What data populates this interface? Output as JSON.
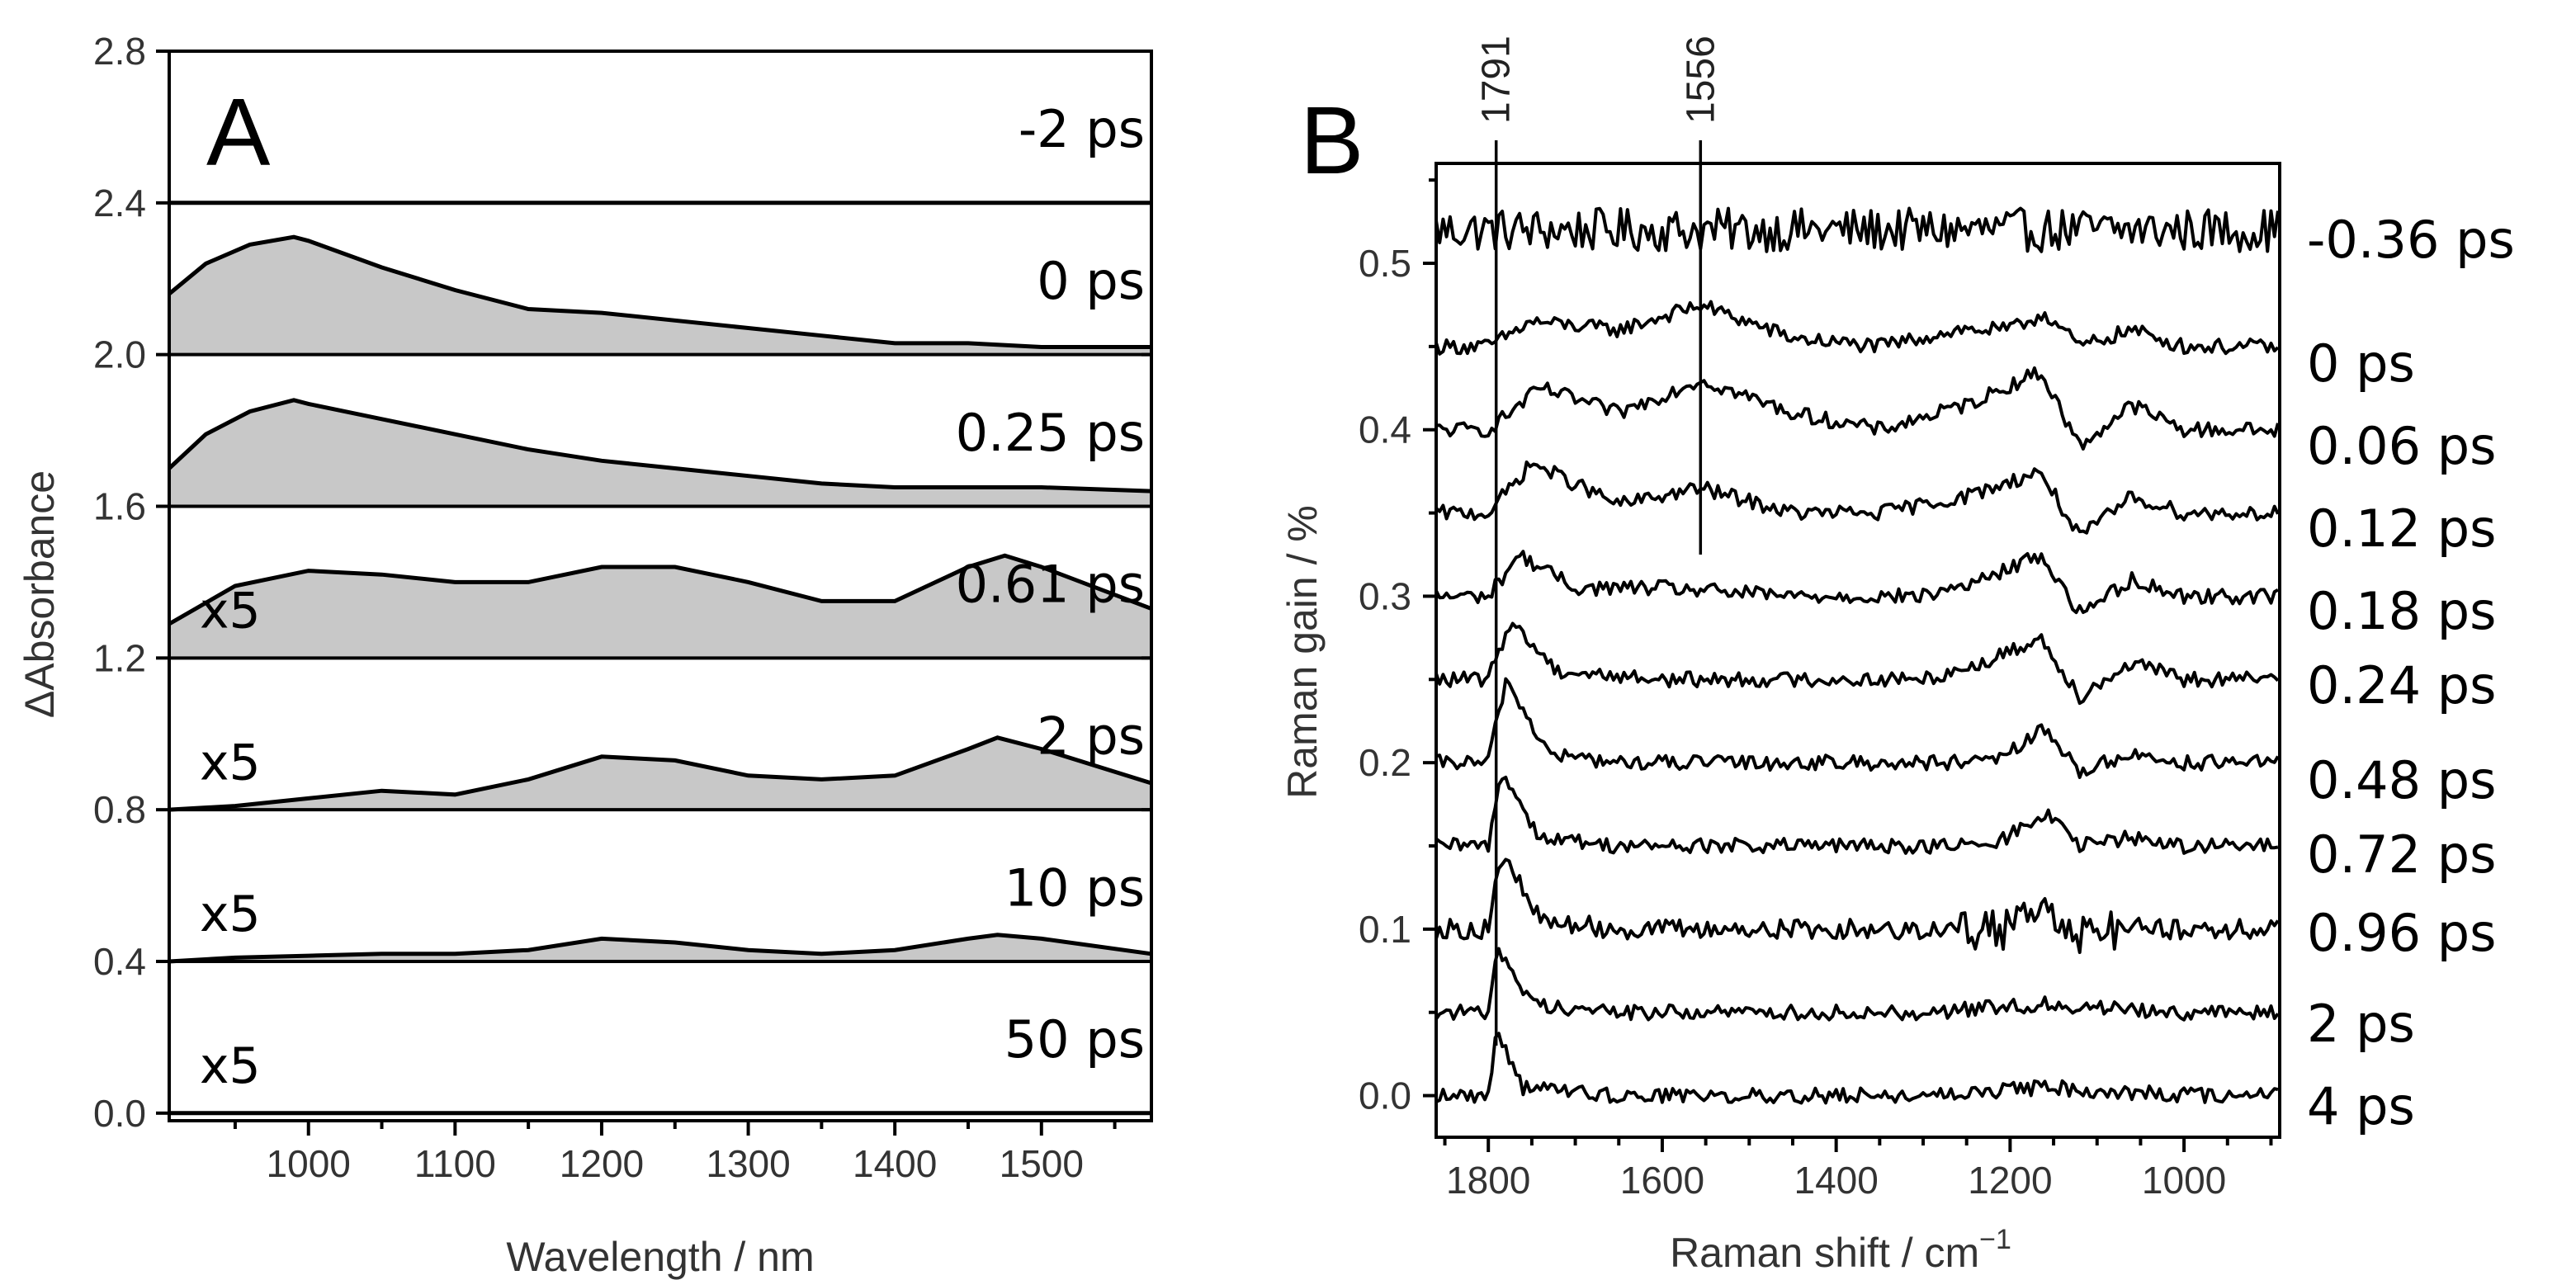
{
  "chart_data": [
    {
      "panel": "A",
      "type": "area",
      "xlabel": "Wavelength / nm",
      "ylabel": "ΔAbsorbance",
      "xlim": [
        905,
        1575
      ],
      "ylim": [
        -0.02,
        2.8
      ],
      "x_ticks": [
        1000,
        1100,
        1200,
        1300,
        1400,
        1500
      ],
      "y_ticks": [
        0.0,
        0.4,
        0.8,
        1.2,
        1.6,
        2.0,
        2.4,
        2.8
      ],
      "y_tick_labels": [
        "0.0",
        "0.4",
        "0.8",
        "1.2",
        "1.6",
        "2.0",
        "2.4",
        "2.8"
      ],
      "grid": false,
      "series": [
        {
          "label": "-2 ps",
          "scale_label": "",
          "offset": 2.4,
          "x": [
            905,
            1575
          ],
          "y": [
            2.4,
            2.4
          ]
        },
        {
          "label": "0 ps",
          "scale_label": "",
          "offset": 2.0,
          "x": [
            905,
            930,
            960,
            990,
            1000,
            1050,
            1100,
            1150,
            1200,
            1250,
            1300,
            1350,
            1400,
            1450,
            1500,
            1575
          ],
          "y": [
            2.16,
            2.24,
            2.29,
            2.31,
            2.3,
            2.23,
            2.17,
            2.12,
            2.11,
            2.09,
            2.07,
            2.05,
            2.03,
            2.03,
            2.02,
            2.02
          ]
        },
        {
          "label": "0.25 ps",
          "scale_label": "",
          "offset": 1.6,
          "x": [
            905,
            930,
            960,
            990,
            1000,
            1050,
            1100,
            1150,
            1200,
            1250,
            1300,
            1350,
            1400,
            1450,
            1500,
            1575
          ],
          "y": [
            1.7,
            1.79,
            1.85,
            1.88,
            1.87,
            1.83,
            1.79,
            1.75,
            1.72,
            1.7,
            1.68,
            1.66,
            1.65,
            1.65,
            1.65,
            1.64
          ]
        },
        {
          "label": "0.61 ps",
          "scale_label": "x5",
          "offset": 1.2,
          "x": [
            905,
            950,
            1000,
            1050,
            1100,
            1150,
            1200,
            1250,
            1300,
            1350,
            1400,
            1450,
            1475,
            1500,
            1575
          ],
          "y": [
            1.29,
            1.39,
            1.43,
            1.42,
            1.4,
            1.4,
            1.44,
            1.44,
            1.4,
            1.35,
            1.35,
            1.44,
            1.47,
            1.44,
            1.33
          ]
        },
        {
          "label": "2 ps",
          "scale_label": "x5",
          "offset": 0.8,
          "x": [
            905,
            950,
            1000,
            1050,
            1100,
            1150,
            1200,
            1250,
            1300,
            1350,
            1400,
            1450,
            1470,
            1500,
            1575
          ],
          "y": [
            0.8,
            0.81,
            0.83,
            0.85,
            0.84,
            0.88,
            0.94,
            0.93,
            0.89,
            0.88,
            0.89,
            0.96,
            0.99,
            0.96,
            0.87
          ]
        },
        {
          "label": "10 ps",
          "scale_label": "x5",
          "offset": 0.4,
          "x": [
            905,
            950,
            1000,
            1050,
            1100,
            1150,
            1200,
            1250,
            1300,
            1350,
            1400,
            1450,
            1470,
            1500,
            1575
          ],
          "y": [
            0.4,
            0.41,
            0.415,
            0.42,
            0.42,
            0.43,
            0.46,
            0.45,
            0.43,
            0.42,
            0.43,
            0.46,
            0.47,
            0.46,
            0.42
          ]
        },
        {
          "label": "50 ps",
          "scale_label": "x5",
          "offset": 0.0,
          "x": [
            905,
            1575
          ],
          "y": [
            0.0,
            0.0
          ]
        }
      ]
    },
    {
      "panel": "B",
      "type": "line",
      "xlabel": "Raman shift / cm",
      "xlabel_superscript": "−1",
      "ylabel": "Raman gain / %",
      "xlim": [
        1860,
        890
      ],
      "ylim": [
        -0.025,
        0.56
      ],
      "x_ticks": [
        1800,
        1600,
        1400,
        1200,
        1000
      ],
      "y_ticks": [
        0.0,
        0.1,
        0.2,
        0.3,
        0.4,
        0.5
      ],
      "y_tick_labels": [
        "0.0",
        "0.1",
        "0.2",
        "0.3",
        "0.4",
        "0.5"
      ],
      "grid": false,
      "markers": [
        {
          "label": "1791",
          "x": 1791,
          "y_bottom": 0.03
        },
        {
          "label": "1556",
          "x": 1556,
          "y_bottom": 0.325
        }
      ],
      "series": [
        {
          "label": "-0.36 ps",
          "offset": 0.52,
          "x": [
            1860,
            1700,
            1500,
            1300,
            1100,
            890
          ],
          "y": [
            0.0,
            0.0,
            0.0,
            0.0,
            0.0,
            0.0
          ]
        },
        {
          "label": "0 ps",
          "offset": 0.45,
          "x": [
            1860,
            1800,
            1750,
            1650,
            1556,
            1450,
            1350,
            1260,
            1200,
            1160,
            1120,
            1060,
            1000,
            890
          ],
          "y": [
            0.0,
            0.0,
            0.015,
            0.01,
            0.025,
            0.005,
            0.0,
            0.01,
            0.01,
            0.02,
            0.0,
            0.01,
            0.0,
            0.0
          ]
        },
        {
          "label": "0.06 ps",
          "offset": 0.4,
          "x": [
            1860,
            1800,
            1740,
            1650,
            1556,
            1450,
            1350,
            1250,
            1165,
            1120,
            1060,
            1000,
            890
          ],
          "y": [
            0.0,
            0.0,
            0.025,
            0.01,
            0.03,
            0.01,
            0.0,
            0.015,
            0.035,
            -0.01,
            0.015,
            0.0,
            0.0
          ]
        },
        {
          "label": "0.12 ps",
          "offset": 0.35,
          "x": [
            1860,
            1800,
            1750,
            1650,
            1556,
            1450,
            1350,
            1250,
            1165,
            1120,
            1060,
            1000,
            890
          ],
          "y": [
            0.0,
            0.0,
            0.03,
            0.005,
            0.015,
            0.0,
            0.0,
            0.01,
            0.025,
            -0.015,
            0.01,
            0.0,
            0.0
          ]
        },
        {
          "label": "0.18 ps",
          "offset": 0.3,
          "x": [
            1860,
            1800,
            1765,
            1700,
            1600,
            1450,
            1300,
            1230,
            1165,
            1120,
            1060,
            1000,
            890
          ],
          "y": [
            0.0,
            0.0,
            0.025,
            0.005,
            0.005,
            0.0,
            0.0,
            0.01,
            0.025,
            -0.01,
            0.01,
            0.0,
            0.0
          ]
        },
        {
          "label": "0.24 ps",
          "offset": 0.25,
          "x": [
            1860,
            1800,
            1775,
            1720,
            1600,
            1450,
            1300,
            1230,
            1165,
            1120,
            1060,
            1000,
            890
          ],
          "y": [
            0.0,
            0.0,
            0.035,
            0.005,
            0.0,
            0.0,
            0.0,
            0.01,
            0.025,
            -0.01,
            0.01,
            0.0,
            0.0
          ]
        },
        {
          "label": "0.48 ps",
          "offset": 0.2,
          "x": [
            1860,
            1800,
            1780,
            1730,
            1650,
            1500,
            1300,
            1220,
            1160,
            1120,
            1060,
            1000,
            890
          ],
          "y": [
            0.0,
            0.0,
            0.05,
            0.005,
            0.0,
            0.0,
            0.0,
            0.0,
            0.02,
            -0.005,
            0.005,
            0.0,
            0.0
          ]
        },
        {
          "label": "0.72 ps",
          "offset": 0.15,
          "x": [
            1860,
            1800,
            1785,
            1740,
            1650,
            1500,
            1300,
            1220,
            1160,
            1120,
            1060,
            1000,
            890
          ],
          "y": [
            0.0,
            0.0,
            0.045,
            0.005,
            0.0,
            0.0,
            0.0,
            0.0,
            0.02,
            0.0,
            0.005,
            0.0,
            0.0
          ]
        },
        {
          "label": "0.96 ps",
          "offset": 0.1,
          "x": [
            1860,
            1800,
            1785,
            1740,
            1650,
            1500,
            1300,
            1220,
            1160,
            1120,
            1060,
            1000,
            890
          ],
          "y": [
            0.0,
            0.0,
            0.045,
            0.005,
            0.0,
            0.0,
            0.0,
            0.0,
            0.015,
            0.0,
            0.0,
            0.0,
            0.0
          ]
        },
        {
          "label": "2 ps",
          "offset": 0.05,
          "x": [
            1860,
            1800,
            1790,
            1750,
            1650,
            1500,
            1300,
            1160,
            1000,
            890
          ],
          "y": [
            0.0,
            0.0,
            0.04,
            0.005,
            0.0,
            0.0,
            0.0,
            0.005,
            0.0,
            0.0
          ]
        },
        {
          "label": "4 ps",
          "offset": 0.0,
          "x": [
            1860,
            1800,
            1790,
            1760,
            1650,
            1500,
            1300,
            1160,
            1000,
            890
          ],
          "y": [
            0.0,
            0.0,
            0.04,
            0.005,
            0.0,
            0.0,
            0.0,
            0.005,
            0.0,
            0.0
          ]
        }
      ]
    }
  ]
}
